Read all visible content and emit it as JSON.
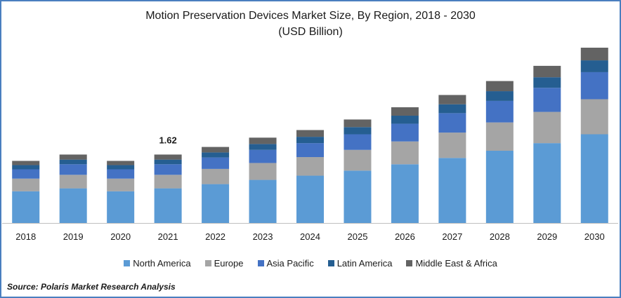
{
  "chart_data": {
    "type": "bar",
    "stacked": true,
    "title": "Motion Preservation Devices Market Size, By Region, 2018 - 2030",
    "subtitle": "(USD Billion)",
    "categories": [
      "2018",
      "2019",
      "2020",
      "2021",
      "2022",
      "2023",
      "2024",
      "2025",
      "2026",
      "2027",
      "2028",
      "2029",
      "2030"
    ],
    "series": [
      {
        "name": "North America",
        "color": "#5b9bd5",
        "values": [
          0.75,
          0.82,
          0.75,
          0.82,
          0.92,
          1.02,
          1.12,
          1.24,
          1.39,
          1.54,
          1.71,
          1.89,
          2.1
        ]
      },
      {
        "name": "Europe",
        "color": "#a5a5a5",
        "values": [
          0.3,
          0.32,
          0.3,
          0.32,
          0.36,
          0.4,
          0.44,
          0.49,
          0.54,
          0.6,
          0.67,
          0.74,
          0.83
        ]
      },
      {
        "name": "Asia Pacific",
        "color": "#4472c4",
        "values": [
          0.22,
          0.25,
          0.22,
          0.25,
          0.27,
          0.31,
          0.33,
          0.37,
          0.42,
          0.46,
          0.51,
          0.57,
          0.64
        ]
      },
      {
        "name": "Latin America",
        "color": "#255e91",
        "values": [
          0.1,
          0.11,
          0.1,
          0.11,
          0.12,
          0.14,
          0.15,
          0.17,
          0.19,
          0.21,
          0.23,
          0.25,
          0.28
        ]
      },
      {
        "name": "Middle East & Africa",
        "color": "#636363",
        "values": [
          0.1,
          0.12,
          0.1,
          0.12,
          0.13,
          0.15,
          0.16,
          0.18,
          0.2,
          0.22,
          0.24,
          0.27,
          0.3
        ]
      }
    ],
    "annotations": [
      {
        "category": "2021",
        "text": "1.62"
      }
    ],
    "xlabel": "",
    "ylabel": "",
    "ylim": [
      0,
      4.15
    ],
    "grid": false,
    "legend_position": "bottom"
  },
  "source": "Source: Polaris Market Research Analysis"
}
